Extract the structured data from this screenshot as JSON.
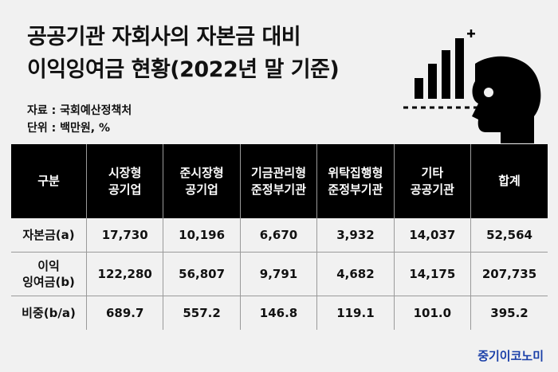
{
  "title": {
    "line1": "공공기관 자회사의 자본금 대비",
    "line2": "이익잉여금 현황(2022년 말 기준)"
  },
  "meta": {
    "source_line": "자료 : 국회예산정책처",
    "unit_line": "단위 : 백만원, %"
  },
  "chart_data": {
    "type": "table",
    "columns": [
      [
        "구분"
      ],
      [
        "시장형",
        "공기업"
      ],
      [
        "준시장형",
        "공기업"
      ],
      [
        "기금관리형",
        "준정부기관"
      ],
      [
        "위탁집행형",
        "준정부기관"
      ],
      [
        "기타",
        "공공기관"
      ],
      [
        "합계"
      ]
    ],
    "rows": [
      {
        "label": [
          "자본금(a)"
        ],
        "values": [
          "17,730",
          "10,196",
          "6,670",
          "3,932",
          "14,037",
          "52,564"
        ]
      },
      {
        "label": [
          "이익",
          "잉여금(b)"
        ],
        "values": [
          "122,280",
          "56,807",
          "9,791",
          "4,682",
          "14,175",
          "207,735"
        ]
      },
      {
        "label": [
          "비중(b/a)"
        ],
        "values": [
          "689.7",
          "557.2",
          "146.8",
          "119.1",
          "101.0",
          "395.2"
        ]
      }
    ]
  },
  "brand": {
    "name": "중기이코노미",
    "color": "#1a3fa8"
  },
  "logo_icon": "head-thinking-chart-icon"
}
